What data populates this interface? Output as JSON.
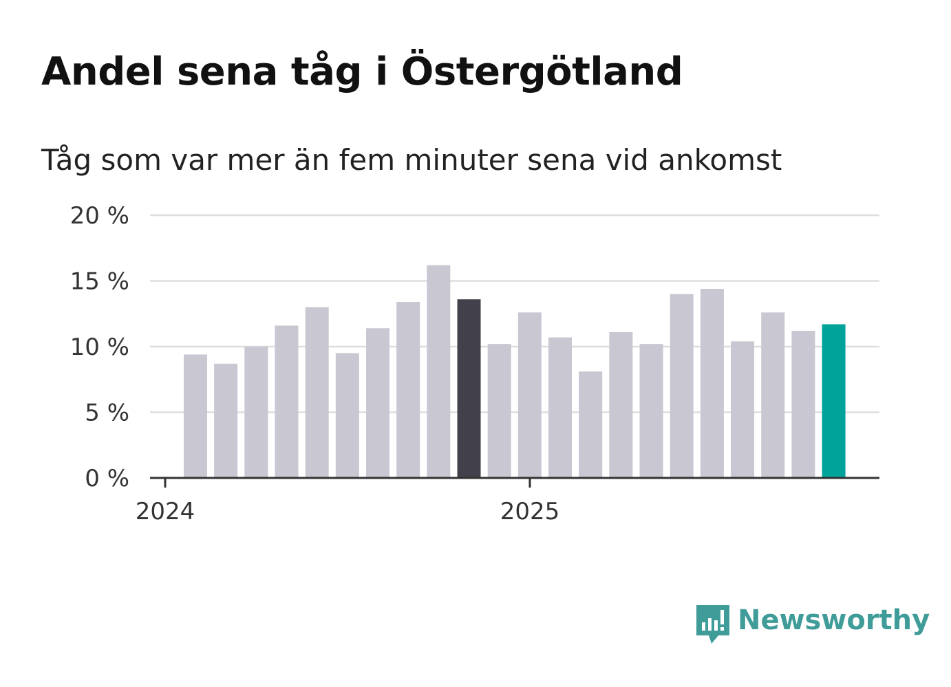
{
  "chart_data": {
    "type": "bar",
    "title": "Andel sena tåg i Östergötland",
    "subtitle": "Tåg som var mer än fem minuter sena vid ankomst",
    "xlabel": "",
    "ylabel": "",
    "ylim": [
      0,
      20
    ],
    "yticks": [
      0,
      5,
      10,
      15,
      20
    ],
    "ytick_labels": [
      "0 %",
      "5 %",
      "10 %",
      "15 %",
      "20 %"
    ],
    "xtick_labels": [
      "2024",
      "2025"
    ],
    "grid": true,
    "categories": [
      "2024-01",
      "2024-02",
      "2024-03",
      "2024-04",
      "2024-05",
      "2024-06",
      "2024-07",
      "2024-08",
      "2024-09",
      "2024-10",
      "2024-11",
      "2024-12",
      "2025-01",
      "2025-02",
      "2025-03",
      "2025-04",
      "2025-05",
      "2025-06",
      "2025-07",
      "2025-08",
      "2025-09",
      "2025-10",
      "2025-11",
      "2025-12"
    ],
    "values": [
      null,
      9.4,
      8.7,
      10.0,
      11.6,
      13.0,
      9.5,
      11.4,
      13.4,
      16.2,
      13.6,
      10.2,
      12.6,
      10.7,
      8.1,
      11.1,
      10.2,
      14.0,
      14.4,
      10.4,
      12.6,
      11.2,
      11.7,
      null
    ],
    "colors": {
      "default": "#c8c7d2",
      "highlight_previous": "#42404b",
      "highlight_latest": "#00a39a",
      "grid": "#dddddd",
      "axis": "#333333"
    },
    "highlight_previous_index": 10,
    "highlight_latest_index": 22
  },
  "logo": {
    "text": "Newsworthy",
    "icon": "newsworthy-logo-icon",
    "color": "#3f9c98"
  }
}
